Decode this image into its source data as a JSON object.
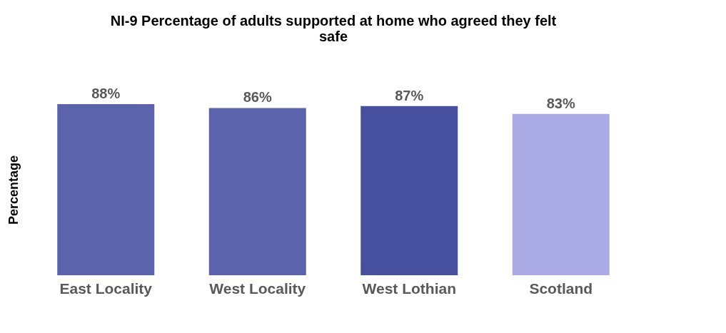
{
  "chart_data": {
    "type": "bar",
    "title": "NI-9 Percentage of adults supported at home who agreed they felt safe",
    "ylabel": "Percentage",
    "categories": [
      "East Locality",
      "West Locality",
      "West Lothian",
      "Scotland"
    ],
    "values": [
      88,
      86,
      87,
      83
    ],
    "value_labels": [
      "88%",
      "86%",
      "87%",
      "83%"
    ],
    "colors": [
      "#5b63ad",
      "#5b63ad",
      "#46509e",
      "#aaaae4"
    ],
    "tick_labels": "x"
  }
}
